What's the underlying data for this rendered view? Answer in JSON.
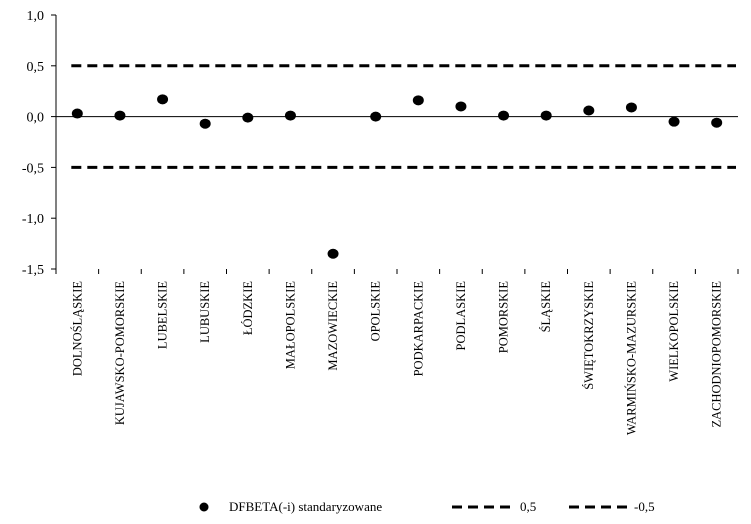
{
  "chart_data": {
    "type": "scatter",
    "title": "",
    "xlabel": "",
    "ylabel": "",
    "ylim": [
      -1.5,
      1.0
    ],
    "yticks": [
      1.0,
      0.5,
      0.0,
      -0.5,
      -1.0,
      -1.5
    ],
    "ytick_labels": [
      "1,0",
      "0,5",
      "0,0",
      "-0,5",
      "-1,0",
      "-1,5"
    ],
    "grid": false,
    "legend_position": "bottom",
    "categories": [
      "DOLNOŚLĄSKIE",
      "KUJAWSKO-POMORSKIE",
      "LUBELSKIE",
      "LUBUSKIE",
      "ŁÓDZKIE",
      "MAŁOPOLSKIE",
      "MAZOWIECKIE",
      "OPOLSKIE",
      "PODKARPACKIE",
      "PODLASKIE",
      "POMORSKIE",
      "ŚLĄSKIE",
      "ŚWIĘTOKRZYSKIE",
      "WARMIŃSKO-MAZURSKIE",
      "WIELKOPOLSKIE",
      "ZACHODNIOPOMORSKIE"
    ],
    "series": [
      {
        "name": "DFBETA(-i) standaryzowane",
        "style": "points",
        "color": "#000000",
        "values": [
          0.03,
          0.01,
          0.17,
          -0.07,
          -0.01,
          0.01,
          -1.35,
          0.0,
          0.16,
          0.1,
          0.01,
          0.01,
          0.06,
          0.09,
          -0.05,
          -0.06
        ]
      },
      {
        "name": "0,5",
        "style": "dashed",
        "color": "#000000",
        "constant": 0.5
      },
      {
        "name": "-0,5",
        "style": "dashed",
        "color": "#000000",
        "constant": -0.5
      }
    ]
  }
}
